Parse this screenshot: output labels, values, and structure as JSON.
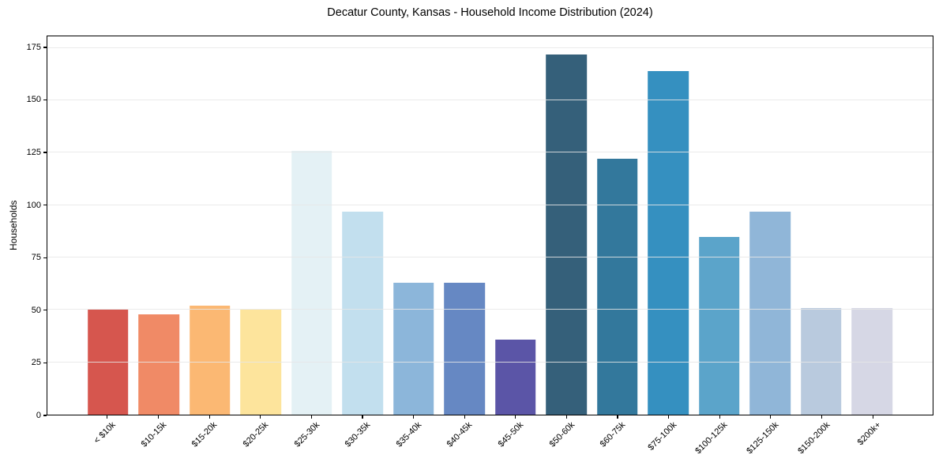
{
  "chart_data": {
    "type": "bar",
    "title": "Decatur County, Kansas - Household Income Distribution (2024)",
    "xlabel": "",
    "ylabel": "Households",
    "categories": [
      "< $10k",
      "$10-15k",
      "$15-20k",
      "$20-25k",
      "$25-30k",
      "$30-35k",
      "$35-40k",
      "$40-45k",
      "$45-50k",
      "$50-60k",
      "$60-75k",
      "$75-100k",
      "$100-125k",
      "$125-150k",
      "$150-200k",
      "$200k+"
    ],
    "values": [
      50,
      48,
      52,
      50,
      126,
      97,
      63,
      63,
      36,
      172,
      122,
      164,
      85,
      97,
      51,
      51
    ],
    "bar_colors": [
      "#d6564e",
      "#f08a66",
      "#fbb873",
      "#fde49c",
      "#e4f1f5",
      "#c2dfee",
      "#8cb6da",
      "#6688c3",
      "#5b55a7",
      "#35607a",
      "#33789c",
      "#3590c0",
      "#5ba4ca",
      "#90b6d8",
      "#b9cade",
      "#d6d7e5"
    ],
    "yticks": [
      0,
      25,
      50,
      75,
      100,
      125,
      150,
      175
    ],
    "ylim": [
      0,
      180.6
    ],
    "bar_width_fraction": 0.8,
    "xtick_rotation_deg": 45,
    "grid": "horizontal",
    "gridline_color": "#e8e8e8",
    "axis_color": "#000000",
    "background_color": "#ffffff",
    "legend_position": "none"
  }
}
